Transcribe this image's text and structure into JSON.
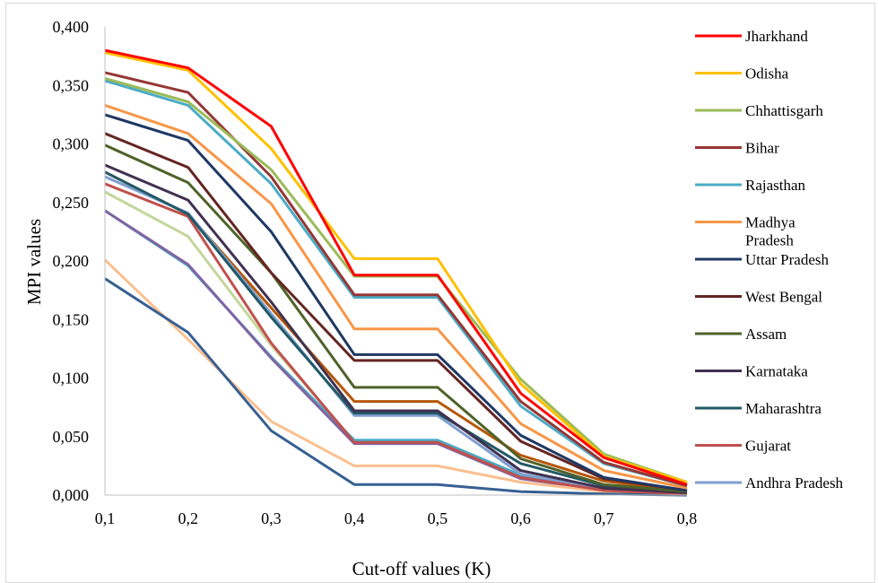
{
  "chart_data": {
    "type": "line",
    "title": "",
    "xlabel": "Cut-off values (K)",
    "ylabel": "MPI values",
    "x": [
      "0,1",
      "0,2",
      "0,3",
      "0,4",
      "0,5",
      "0,6",
      "0,7",
      "0,8"
    ],
    "x_values": [
      0.1,
      0.2,
      0.3,
      0.4,
      0.5,
      0.6,
      0.7,
      0.8
    ],
    "ylim": [
      0,
      0.4
    ],
    "yticks": [
      "0,000",
      "0,050",
      "0,100",
      "0,150",
      "0,200",
      "0,250",
      "0,300",
      "0,350",
      "0,400"
    ],
    "grid": false,
    "legend_position": "right",
    "series": [
      {
        "name": "Jharkhand",
        "color": "#ff0000",
        "values": [
          0.38,
          0.365,
          0.315,
          0.188,
          0.188,
          0.087,
          0.032,
          0.009
        ]
      },
      {
        "name": "Odisha",
        "color": "#ffc000",
        "values": [
          0.378,
          0.363,
          0.296,
          0.202,
          0.202,
          0.095,
          0.033,
          0.011
        ]
      },
      {
        "name": "Chhattisgarh",
        "color": "#9bbb59",
        "values": [
          0.356,
          0.336,
          0.278,
          0.187,
          0.187,
          0.099,
          0.035,
          0.011
        ]
      },
      {
        "name": "Bihar",
        "color": "#953735",
        "values": [
          0.361,
          0.344,
          0.272,
          0.171,
          0.171,
          0.08,
          0.028,
          0.008
        ]
      },
      {
        "name": "Rajasthan",
        "color": "#4bacc6",
        "values": [
          0.354,
          0.333,
          0.266,
          0.169,
          0.169,
          0.076,
          0.027,
          0.008
        ]
      },
      {
        "name": "Madhya\nPradesh",
        "color": "#f79646",
        "values": [
          0.333,
          0.309,
          0.249,
          0.142,
          0.142,
          0.061,
          0.021,
          0.006
        ]
      },
      {
        "name": "Uttar Pradesh",
        "color": "#1f3864",
        "values": [
          0.325,
          0.303,
          0.225,
          0.12,
          0.12,
          0.051,
          0.015,
          0.004
        ]
      },
      {
        "name": "West Bengal",
        "color": "#632523",
        "values": [
          0.309,
          0.28,
          0.19,
          0.115,
          0.115,
          0.046,
          0.014,
          0.004
        ]
      },
      {
        "name": "Assam",
        "color": "#4f6228",
        "values": [
          0.299,
          0.267,
          0.19,
          0.092,
          0.092,
          0.031,
          0.009,
          0.003
        ]
      },
      {
        "name": "Karnataka",
        "color": "#403151",
        "values": [
          0.282,
          0.252,
          0.165,
          0.072,
          0.072,
          0.021,
          0.006,
          0.002
        ]
      },
      {
        "name": "Maharashtra",
        "color": "#215967",
        "values": [
          0.276,
          0.24,
          0.152,
          0.07,
          0.07,
          0.027,
          0.008,
          0.002
        ]
      },
      {
        "name": "Gujarat",
        "color": "#c0504d",
        "values": [
          0.266,
          0.238,
          0.13,
          0.045,
          0.045,
          0.015,
          0.004,
          0.001
        ]
      },
      {
        "name": "Andhra Pradesh",
        "color": "#7f9fcf",
        "values": [
          0.272,
          0.241,
          0.155,
          0.068,
          0.068,
          0.018,
          0.005,
          0.001
        ]
      }
    ],
    "extra_unlabeled_lines": [
      {
        "color": "#c3d69b",
        "values": [
          0.259,
          0.221,
          0.128,
          0.046,
          0.046,
          0.017,
          0.005,
          0.001
        ]
      },
      {
        "color": "#b65708",
        "values": [
          0.276,
          0.24,
          0.16,
          0.08,
          0.08,
          0.034,
          0.012,
          0.003
        ]
      },
      {
        "color": "#4bacc6",
        "values": [
          0.243,
          0.196,
          0.118,
          0.047,
          0.047,
          0.017,
          0.005,
          0.001
        ]
      },
      {
        "color": "#8064a2",
        "values": [
          0.243,
          0.197,
          0.117,
          0.044,
          0.044,
          0.014,
          0.004,
          0.001
        ]
      },
      {
        "color": "#fabf8f",
        "values": [
          0.201,
          0.133,
          0.063,
          0.025,
          0.025,
          0.011,
          0.003,
          0.001
        ]
      },
      {
        "color": "#376092",
        "values": [
          0.185,
          0.139,
          0.055,
          0.009,
          0.009,
          0.003,
          0.001,
          0.0
        ]
      }
    ]
  }
}
